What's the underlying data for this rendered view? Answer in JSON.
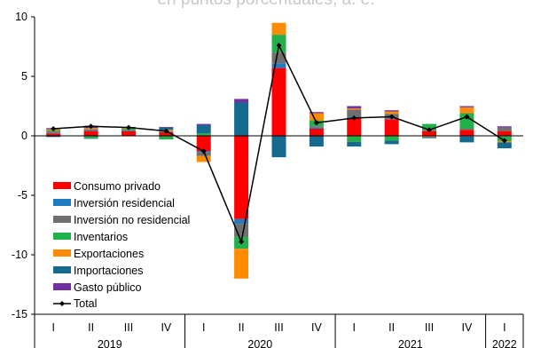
{
  "chart_data": {
    "type": "bar",
    "title": "en puntos porcentuales, a. e.",
    "ylim": [
      -15,
      10
    ],
    "yticks": [
      -15,
      -10,
      -5,
      0,
      5,
      10
    ],
    "categories": [
      "I",
      "II",
      "III",
      "IV",
      "I",
      "II",
      "III",
      "IV",
      "I",
      "II",
      "III",
      "IV",
      "I"
    ],
    "years": [
      {
        "label": "2019",
        "span": [
          0,
          3
        ]
      },
      {
        "label": "2020",
        "span": [
          4,
          7
        ]
      },
      {
        "label": "2021",
        "span": [
          8,
          11
        ]
      },
      {
        "label": "2022",
        "span": [
          12,
          12
        ]
      }
    ],
    "stacked": true,
    "series": [
      {
        "name": "Consumo privado",
        "color": "#ff0000",
        "values": [
          0.2,
          0.4,
          0.4,
          0.3,
          -1.3,
          -7.0,
          5.7,
          0.6,
          1.5,
          1.4,
          0.4,
          0.5,
          0.4
        ]
      },
      {
        "name": "Inversión residencial",
        "color": "#1f7cc1",
        "values": [
          0.05,
          0.05,
          0.05,
          0.05,
          -0.1,
          -0.4,
          0.4,
          0.1,
          0.1,
          0.05,
          0.0,
          -0.05,
          -0.05
        ]
      },
      {
        "name": "Inversión no residencial",
        "color": "#6f6f6f",
        "values": [
          0.1,
          0.1,
          0.05,
          0.05,
          -0.3,
          -1.1,
          0.9,
          0.1,
          0.6,
          0.4,
          0.1,
          0.1,
          0.3
        ]
      },
      {
        "name": "Inventarios",
        "color": "#22b04b",
        "values": [
          0.1,
          -0.2,
          0.1,
          -0.3,
          0.2,
          -1.0,
          1.5,
          0.5,
          -0.5,
          -0.4,
          0.5,
          1.3,
          -0.4
        ]
      },
      {
        "name": "Exportaciones",
        "color": "#ff8c00",
        "values": [
          0.1,
          0.1,
          0.1,
          0.1,
          -0.5,
          -2.5,
          1.0,
          0.6,
          0.1,
          0.2,
          -0.1,
          0.5,
          -0.1
        ]
      },
      {
        "name": "Importaciones",
        "color": "#156a8e",
        "values": [
          -0.1,
          -0.05,
          0.0,
          0.2,
          0.7,
          2.8,
          -1.8,
          -0.9,
          -0.4,
          -0.3,
          -0.1,
          -0.5,
          -0.5
        ]
      },
      {
        "name": "Gasto público",
        "color": "#7030a0",
        "values": [
          0.1,
          0.2,
          0.05,
          0.05,
          0.1,
          0.3,
          0.0,
          0.1,
          0.2,
          0.1,
          0.0,
          0.1,
          0.1
        ]
      }
    ],
    "total": {
      "name": "Total",
      "color": "#000000",
      "values": [
        0.6,
        0.8,
        0.7,
        0.4,
        -1.3,
        -8.9,
        7.6,
        1.1,
        1.5,
        1.6,
        0.5,
        1.6,
        -0.4
      ]
    },
    "legend_position": "bottom-left"
  }
}
